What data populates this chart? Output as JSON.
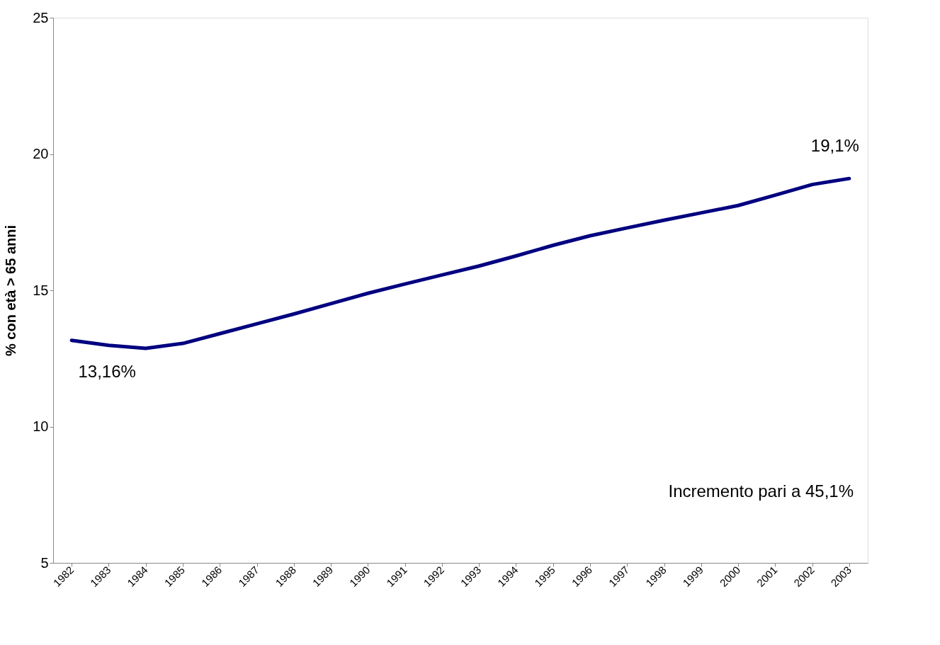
{
  "chart_data": {
    "type": "line",
    "ylabel": "% con età > 65 anni",
    "categories": [
      "1982",
      "1983",
      "1984",
      "1985",
      "1986",
      "1987",
      "1988",
      "1989",
      "1990",
      "1991",
      "1992",
      "1993",
      "1994",
      "1995",
      "1996",
      "1997",
      "1998",
      "1999",
      "2000",
      "2001",
      "2002",
      "2003"
    ],
    "series": [
      {
        "color": "#000080",
        "values": [
          13.16,
          12.98,
          12.87,
          13.05,
          13.41,
          13.77,
          14.13,
          14.51,
          14.89,
          15.23,
          15.56,
          15.89,
          16.26,
          16.65,
          17.0,
          17.29,
          17.57,
          17.84,
          18.11,
          18.49,
          18.88,
          19.1
        ]
      }
    ],
    "ylim": [
      5,
      25
    ],
    "yticks": [
      5,
      10,
      15,
      20,
      25
    ],
    "grid": false,
    "marker": "none",
    "line_style": "solid",
    "annotations": [
      {
        "text": "13,16%",
        "x": "1982",
        "y": 13.16
      },
      {
        "text": "19,1%",
        "x": "2003",
        "y": 19.1
      },
      "Incremento pari a 45,1%"
    ]
  }
}
